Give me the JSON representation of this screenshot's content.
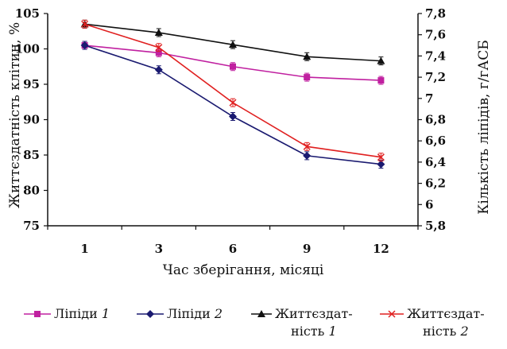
{
  "chart_data": {
    "type": "line",
    "x": [
      "1",
      "3",
      "6",
      "9",
      "12"
    ],
    "xlabel": "Час зберігання, місяці",
    "ylabel_left": "Життєздатність клітин, %",
    "ylabel_right": "Кількість ліпідів, г/гАСБ",
    "ylim_left": [
      75,
      105
    ],
    "yticks_left": [
      "75",
      "80",
      "85",
      "90",
      "95",
      "100",
      "105"
    ],
    "ylim_right": [
      5.8,
      7.8
    ],
    "yticks_right": [
      "5,8",
      "6",
      "6,2",
      "6,4",
      "6,6",
      "6,8",
      "7",
      "7,2",
      "7,4",
      "7,6",
      "7,8"
    ],
    "series": [
      {
        "name": "Ліпіди 1",
        "label_text": "Ліпіди",
        "label_num": "1",
        "axis": "right",
        "color": "#c020a0",
        "marker": "square",
        "values": [
          7.5,
          7.43,
          7.3,
          7.2,
          7.17
        ]
      },
      {
        "name": "Ліпіди 2",
        "label_text": "Ліпіди",
        "label_num": "2",
        "axis": "right",
        "color": "#1a1a70",
        "marker": "diamond",
        "values": [
          7.5,
          7.27,
          6.83,
          6.46,
          6.38
        ]
      },
      {
        "name": "Життєздатність 1",
        "label_text": "Життєздат-",
        "label_text2": "ність",
        "label_num": "1",
        "axis": "left",
        "color": "#111111",
        "marker": "triangle",
        "values": [
          103.5,
          102.3,
          100.6,
          98.9,
          98.3
        ]
      },
      {
        "name": "Життєздатність 2",
        "label_text": "Життєздат-",
        "label_text2": "ність",
        "label_num": "2",
        "axis": "left",
        "color": "#e02020",
        "marker": "x",
        "values": [
          103.5,
          100.2,
          92.4,
          86.2,
          84.7
        ]
      }
    ],
    "grid": false,
    "legend_position": "bottom"
  }
}
